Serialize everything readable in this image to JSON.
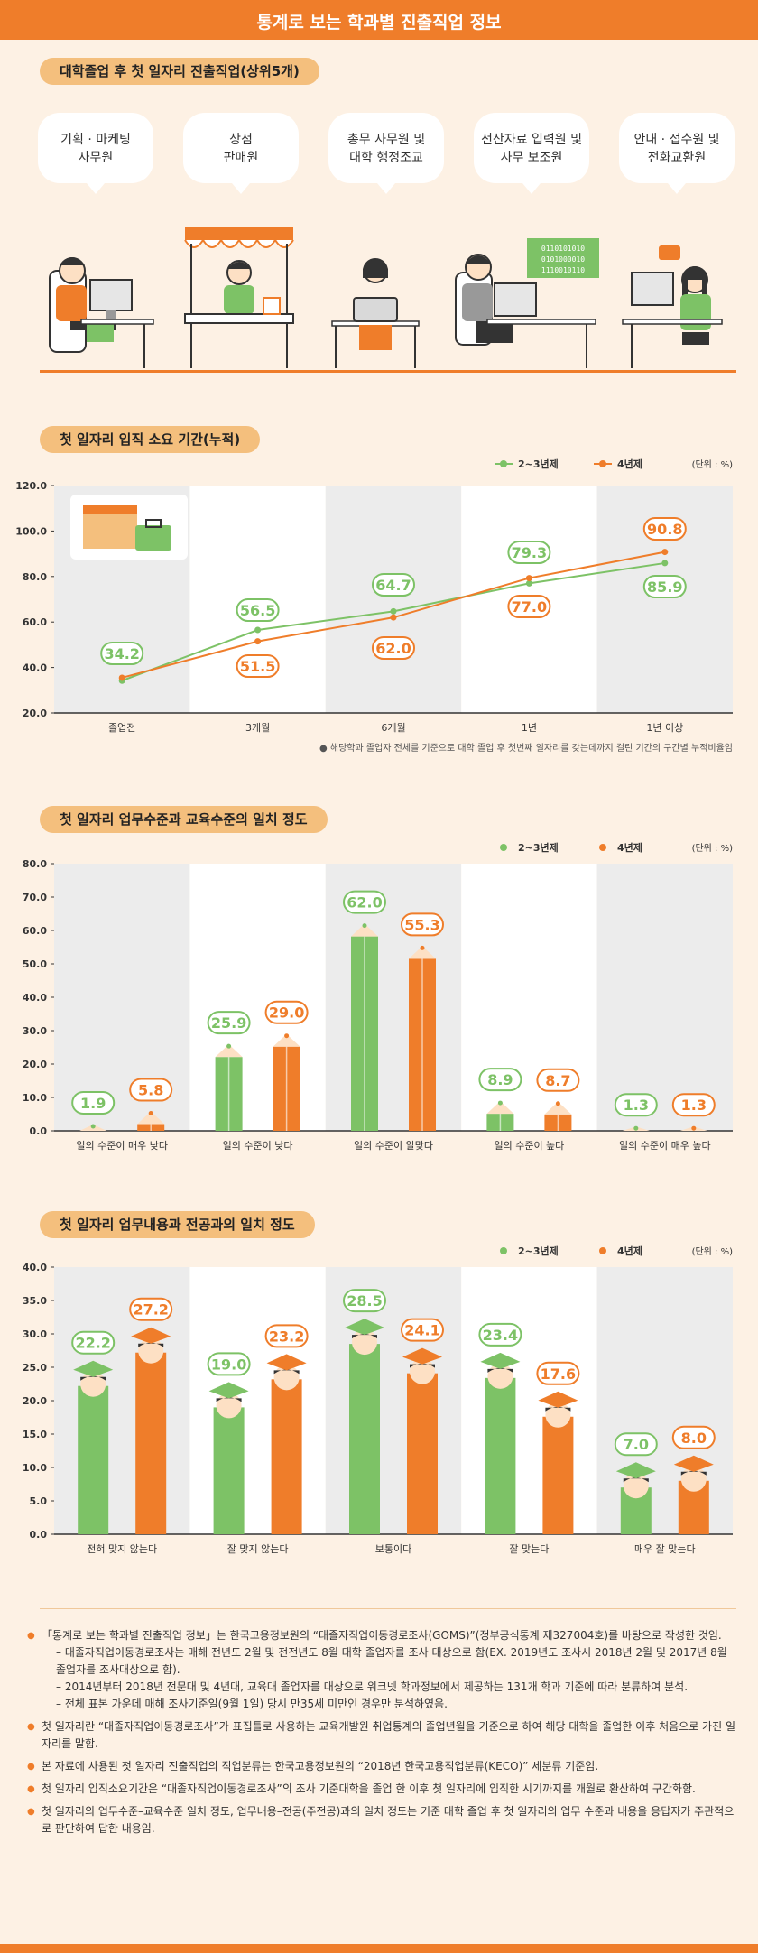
{
  "title": "통계로 보는 학과별 진출직업 정보",
  "section1": {
    "heading": "대학졸업 후 첫 일자리 진출직업(상위5개)",
    "jobs": [
      {
        "line1": "기획 · 마케팅",
        "line2": "사무원"
      },
      {
        "line1": "상점",
        "line2": "판매원"
      },
      {
        "line1": "총무 사무원 및",
        "line2": "대학 행정조교"
      },
      {
        "line1": "전산자료 입력원 및",
        "line2": "사무 보조원"
      },
      {
        "line1": "안내 · 접수원 및",
        "line2": "전화교환원"
      }
    ],
    "binary_text": [
      "0110101010",
      "0101000010",
      "1110010110"
    ]
  },
  "chart_line": {
    "heading": "첫 일자리 입직 소요 기간(누적)",
    "legend": [
      "2~3년제",
      "4년제"
    ],
    "unit": "(단위 : %)",
    "note": "● 해당학과 졸업자 전체를 기준으로 대학 졸업 후 첫번째 일자리를 갖는데까지 걸린 기간의 구간별 누적비율임",
    "y_ticks": [
      "20.0",
      "40.0",
      "60.0",
      "80.0",
      "100.0",
      "120.0"
    ]
  },
  "chart_bar1": {
    "heading": "첫 일자리 업무수준과 교육수준의 일치 정도",
    "legend": [
      "2~3년제",
      "4년제"
    ],
    "unit": "(단위 : %)",
    "y_ticks": [
      "0.0",
      "10.0",
      "20.0",
      "30.0",
      "40.0",
      "50.0",
      "60.0",
      "70.0",
      "80.0"
    ]
  },
  "chart_bar2": {
    "heading": "첫 일자리 업무내용과 전공과의 일치 정도",
    "legend": [
      "2~3년제",
      "4년제"
    ],
    "unit": "(단위 : %)",
    "y_ticks": [
      "0.0",
      "5.0",
      "10.0",
      "15.0",
      "20.0",
      "25.0",
      "30.0",
      "35.0",
      "40.0"
    ]
  },
  "chart_data": [
    {
      "type": "line",
      "categories": [
        "졸업전",
        "3개월",
        "6개월",
        "1년",
        "1년 이상"
      ],
      "series": [
        {
          "name": "2~3년제",
          "values": [
            34.2,
            56.5,
            64.7,
            77.0,
            85.9
          ]
        },
        {
          "name": "4년제",
          "values": [
            35.5,
            51.5,
            62.0,
            79.3,
            90.8
          ]
        }
      ],
      "value_labels_top": [
        "35.5",
        "56.5",
        "64.7",
        "79.3",
        "90.8"
      ],
      "value_labels_bottom": [
        "34.2",
        "51.5",
        "62.0",
        "77.0",
        "85.9"
      ],
      "ylim": [
        20,
        120
      ],
      "colors": [
        "#7dc266",
        "#ef7d2a"
      ]
    },
    {
      "type": "bar",
      "categories": [
        "일의 수준이 매우 낮다",
        "일의 수준이 낮다",
        "일의 수준이 알맞다",
        "일의 수준이 높다",
        "일의 수준이 매우 높다"
      ],
      "series": [
        {
          "name": "2~3년제",
          "values": [
            1.9,
            25.9,
            62.0,
            8.9,
            1.3
          ]
        },
        {
          "name": "4년제",
          "values": [
            5.8,
            29.0,
            55.3,
            8.7,
            1.3
          ]
        }
      ],
      "ylim": [
        0,
        80
      ],
      "colors": [
        "#7dc266",
        "#ef7d2a"
      ]
    },
    {
      "type": "bar",
      "categories": [
        "전혀 맞지 않는다",
        "잘 맞지 않는다",
        "보통이다",
        "잘 맞는다",
        "매우 잘 맞는다"
      ],
      "series": [
        {
          "name": "2~3년제",
          "values": [
            22.2,
            19.0,
            28.5,
            23.4,
            7.0
          ]
        },
        {
          "name": "4년제",
          "values": [
            27.2,
            23.2,
            24.1,
            17.6,
            8.0
          ]
        }
      ],
      "ylim": [
        0,
        40
      ],
      "colors": [
        "#7dc266",
        "#ef7d2a"
      ]
    }
  ],
  "footnotes": [
    {
      "text": "「통계로 보는 학과별 진출직업 정보」는 한국고용정보원의 “대졸자직업이동경로조사(GOMS)”(정부공식통계 제327004호)를 바탕으로 작성한 것임.",
      "subs": [
        "– 대졸자직업이동경로조사는 매해 전년도 2월 및 전전년도 8월 대학 졸업자를 조사 대상으로 함(EX. 2019년도 조사시 2018년 2월 및 2017년 8월 졸업자를 조사대상으로 함).",
        "– 2014년부터 2018년 전문대 및 4년대, 교육대 졸업자를 대상으로 워크넷 학과정보에서 제공하는 131개 학과 기준에 따라 분류하여 분석.",
        "– 전체 표본 가운데 매해 조사기준일(9월 1일) 당시 만35세 미만인 경우만 분석하였음."
      ]
    },
    {
      "text": "첫 일자리란 “대졸자직업이동경로조사”가 표집틀로 사용하는 교육개발원 취업통계의 졸업년월을 기준으로 하여 해당 대학을 졸업한 이후 처음으로 가진 일자리를 말함.",
      "subs": []
    },
    {
      "text": "본 자료에 사용된 첫 일자리 진출직업의 직업분류는 한국고용정보원의 “2018년 한국고용직업분류(KECO)” 세분류 기준임.",
      "subs": []
    },
    {
      "text": "첫 일자리 입직소요기간은 “대졸자직업이동경로조사”의 조사 기준대학을 졸업 한 이후 첫 일자리에 입직한 시기까지를 개월로 환산하여 구간화함.",
      "subs": []
    },
    {
      "text": "첫 일자리의 업무수준–교육수준 일치 정도, 업무내용–전공(주전공)과의 일치 정도는 기준 대학 졸업 후 첫 일자리의 업무 수준과 내용을 응답자가 주관적으로 판단하여 답한 내용임.",
      "subs": []
    }
  ]
}
